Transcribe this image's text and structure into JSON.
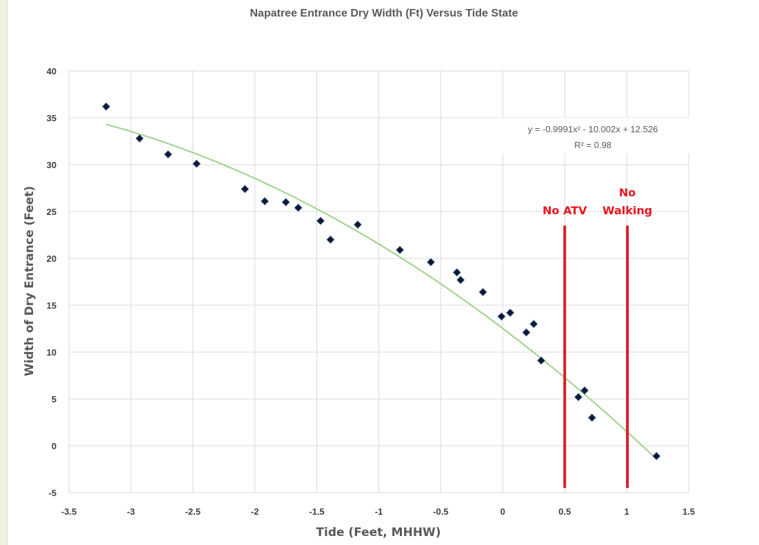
{
  "chart_data": {
    "type": "scatter",
    "title": "Napatree Entrance Dry Width (Ft) Versus Tide State",
    "xlabel": "Tide (Feet, MHHW)",
    "ylabel": "Width of Dry Entrance (Feet)",
    "xlim": [
      -3.5,
      1.5
    ],
    "ylim": [
      -5,
      40
    ],
    "xticks": [
      -3.5,
      -3,
      -2.5,
      -2,
      -1.5,
      -1,
      -0.5,
      0,
      0.5,
      1,
      1.5
    ],
    "xtick_labels": [
      "-3.5",
      "-3",
      "-2.5",
      "-2",
      "-1.5",
      "-1",
      "-0.5",
      "0",
      "0.5",
      "1",
      "1.5"
    ],
    "yticks": [
      -5,
      0,
      5,
      10,
      15,
      20,
      25,
      30,
      35,
      40
    ],
    "ytick_labels": [
      "-5",
      "0",
      "5",
      "10",
      "15",
      "20",
      "25",
      "30",
      "35",
      "40"
    ],
    "grid": true,
    "legend": "none",
    "colors": {
      "points": "#0d1a33",
      "trendline": "#9fd18a",
      "markers": "#d91e24",
      "annotations": "#e8161e",
      "grid": "#d9d9d9"
    },
    "series": [
      {
        "points": [
          {
            "x": -3.2,
            "y": 36.2
          },
          {
            "x": -2.93,
            "y": 32.8
          },
          {
            "x": -2.7,
            "y": 31.1
          },
          {
            "x": -2.47,
            "y": 30.1
          },
          {
            "x": -2.08,
            "y": 27.4
          },
          {
            "x": -1.92,
            "y": 26.1
          },
          {
            "x": -1.75,
            "y": 26.0
          },
          {
            "x": -1.65,
            "y": 25.4
          },
          {
            "x": -1.47,
            "y": 24.0
          },
          {
            "x": -1.39,
            "y": 22.0
          },
          {
            "x": -1.17,
            "y": 23.6
          },
          {
            "x": -0.83,
            "y": 20.9
          },
          {
            "x": -0.58,
            "y": 19.6
          },
          {
            "x": -0.37,
            "y": 18.5
          },
          {
            "x": -0.34,
            "y": 17.7
          },
          {
            "x": -0.16,
            "y": 16.4
          },
          {
            "x": -0.01,
            "y": 13.8
          },
          {
            "x": 0.06,
            "y": 14.2
          },
          {
            "x": 0.19,
            "y": 12.1
          },
          {
            "x": 0.25,
            "y": 13.0
          },
          {
            "x": 0.31,
            "y": 9.1
          },
          {
            "x": 0.61,
            "y": 5.2
          },
          {
            "x": 0.66,
            "y": 5.9
          },
          {
            "x": 0.72,
            "y": 3.0
          },
          {
            "x": 1.24,
            "y": -1.1
          }
        ]
      }
    ],
    "trendline": {
      "type": "polynomial",
      "coefficients": {
        "a": -0.9991,
        "b": -10.002,
        "c": 12.526
      },
      "x_range": [
        -3.2,
        1.24
      ],
      "equation_label": "y = -0.9991x² - 10.002x + 12.526",
      "r2_label": "R² = 0.98"
    },
    "vertical_markers": [
      {
        "x": 0.5,
        "y_from": -4.5,
        "y_to": 23.5,
        "label_lines": [
          "No ATV"
        ]
      },
      {
        "x": 1.0,
        "y_from": -4.5,
        "y_to": 23.5,
        "label_lines": [
          "No",
          "Walking"
        ]
      }
    ]
  }
}
